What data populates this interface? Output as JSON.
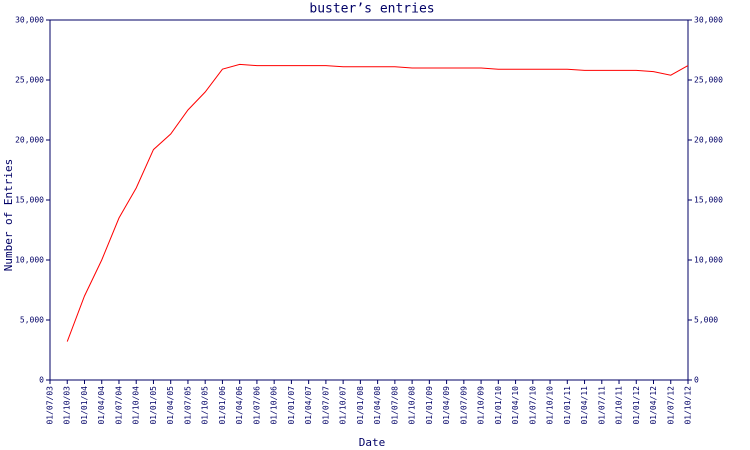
{
  "chart_data": {
    "type": "line",
    "title": "buster’s entries",
    "x_label": "Date",
    "y_label": "Number of Entries",
    "categories": [
      "01/07/03",
      "01/10/03",
      "01/01/04",
      "01/04/04",
      "01/07/04",
      "01/10/04",
      "01/01/05",
      "01/04/05",
      "01/07/05",
      "01/10/05",
      "01/01/06",
      "01/04/06",
      "01/07/06",
      "01/10/06",
      "01/01/07",
      "01/04/07",
      "01/07/07",
      "01/10/07",
      "01/01/08",
      "01/04/08",
      "01/07/08",
      "01/10/08",
      "01/01/09",
      "01/04/09",
      "01/07/09",
      "01/10/09",
      "01/01/10",
      "01/04/10",
      "01/07/10",
      "01/10/10",
      "01/01/11",
      "01/04/11",
      "01/07/11",
      "01/10/11",
      "01/01/12",
      "01/04/12",
      "01/07/12",
      "01/10/12"
    ],
    "series": [
      {
        "name": "entries",
        "color": "#ff0000",
        "values": [
          null,
          3200,
          7000,
          10000,
          13500,
          16000,
          19200,
          20500,
          22500,
          24000,
          25900,
          26300,
          26200,
          26200,
          26200,
          26200,
          26200,
          26100,
          26100,
          26100,
          26100,
          26000,
          26000,
          26000,
          26000,
          26000,
          25900,
          25900,
          25900,
          25900,
          25900,
          25800,
          25800,
          25800,
          25800,
          25700,
          25400,
          26200
        ]
      }
    ],
    "ylim": [
      0,
      30000
    ],
    "yticks": [
      0,
      {
        "value": 5000,
        "label": "5,000"
      },
      {
        "value": 10000,
        "label": "10,000"
      },
      {
        "value": 15000,
        "label": "15,000"
      },
      {
        "value": 20000,
        "label": "20,000"
      },
      {
        "value": 25000,
        "label": "25,000"
      },
      {
        "value": 30000,
        "label": "30,000"
      }
    ],
    "y2lim": [
      0,
      30000
    ],
    "y2ticks": [
      0,
      {
        "value": 5000,
        "label": "5,000"
      },
      {
        "value": 10000,
        "label": "10,000"
      },
      {
        "value": 15000,
        "label": "15,000"
      },
      {
        "value": 20000,
        "label": "20,000"
      },
      {
        "value": 25000,
        "label": "25,000"
      },
      {
        "value": 30000,
        "label": "30,000"
      }
    ]
  }
}
